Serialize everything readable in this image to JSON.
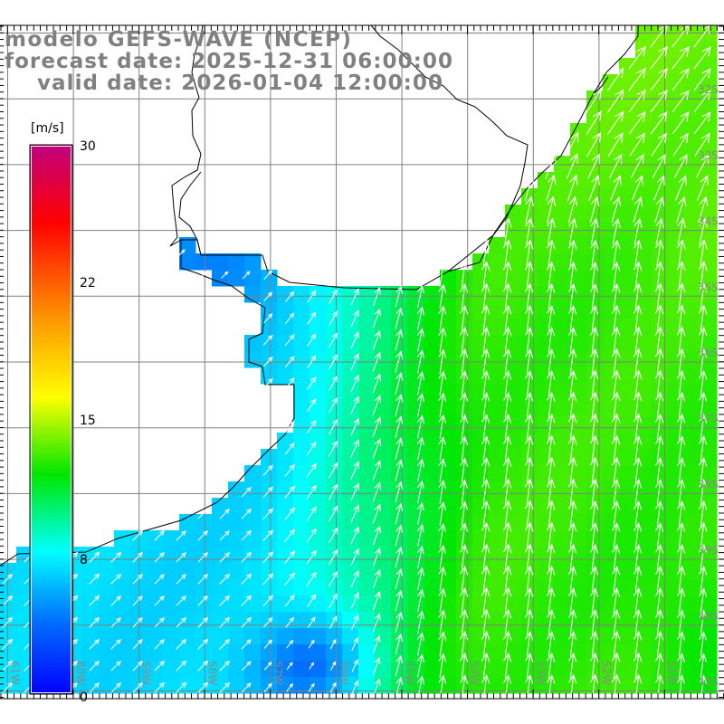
{
  "header": {
    "model_line": "modelo GEFS-WAVE (NCEP)",
    "forecast_line": "forecast date: 2025-12-31 06:00:00",
    "valid_line": "valid date: 2026-01-04 12:00:00"
  },
  "colorbar": {
    "unit": "[m/s]",
    "range": [
      0,
      30
    ],
    "ticks": [
      {
        "value": 30,
        "label": "30"
      },
      {
        "value": 22,
        "label": "22"
      },
      {
        "value": 15,
        "label": "15"
      },
      {
        "value": 8,
        "label": "8"
      },
      {
        "value": 0,
        "label": "0"
      }
    ],
    "stops": [
      {
        "value": 0,
        "color": "#0000ff"
      },
      {
        "value": 4,
        "color": "#0070ff"
      },
      {
        "value": 7.8,
        "color": "#00ffff"
      },
      {
        "value": 12,
        "color": "#00e600"
      },
      {
        "value": 16.2,
        "color": "#ffff00"
      },
      {
        "value": 20.4,
        "color": "#ff9900"
      },
      {
        "value": 25.8,
        "color": "#ff0000"
      },
      {
        "value": 30,
        "color": "#c0007f"
      }
    ]
  },
  "map": {
    "land_color": "#ffffff",
    "coast_color": "#000000",
    "grid_color": "#808080",
    "arrow_color": "#ffffff",
    "longitude_labels": [
      "61W",
      "60W",
      "59W",
      "58W",
      "57W",
      "56W",
      "55W",
      "54W",
      "53W",
      "52W",
      "51W"
    ],
    "latitude_labels": [
      "32S",
      "33S",
      "34S",
      "35S",
      "36S",
      "37S",
      "38S",
      "39S",
      "40S",
      "41S"
    ]
  }
}
